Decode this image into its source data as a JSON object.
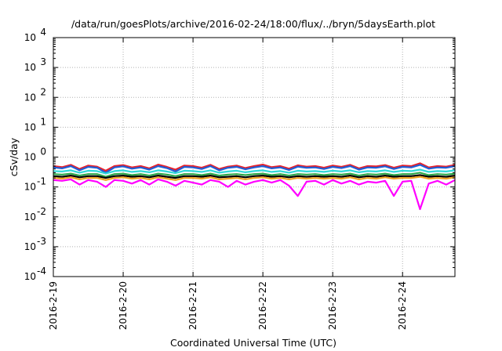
{
  "chart_data": {
    "type": "line",
    "title": "/data/run/goesPlots/archive/2016-02-24/18:00/flux/../bryn/5daysEarth.plot",
    "xlabel": "Coordinated Universal Time (UTC)",
    "ylabel": "cSv/day",
    "yscale": "log",
    "ylim": [
      0.0001,
      10000
    ],
    "xlim": [
      "2016-02-19",
      "2016-02-24 18:00"
    ],
    "grid": true,
    "x_tick_labels": [
      "2016-2-19",
      "2016-2-20",
      "2016-2-21",
      "2016-2-22",
      "2016-2-23",
      "2016-2-24"
    ],
    "y_tick_labels": [
      {
        "base": "10",
        "exp": "-4"
      },
      {
        "base": "10",
        "exp": "-3"
      },
      {
        "base": "10",
        "exp": "-2"
      },
      {
        "base": "10",
        "exp": "-1"
      },
      {
        "base": "10",
        "exp": "0"
      },
      {
        "base": "10",
        "exp": "1"
      },
      {
        "base": "10",
        "exp": "2"
      },
      {
        "base": "10",
        "exp": "3"
      },
      {
        "base": "10",
        "exp": "4"
      }
    ],
    "x_hours": [
      0,
      3,
      6,
      9,
      12,
      15,
      18,
      21,
      24,
      27,
      30,
      33,
      36,
      39,
      42,
      45,
      48,
      51,
      54,
      57,
      60,
      63,
      66,
      69,
      72,
      75,
      78,
      81,
      84,
      87,
      90,
      93,
      96,
      99,
      102,
      105,
      108,
      111,
      114,
      117,
      120,
      123,
      126,
      129,
      132,
      135,
      138
    ],
    "series": [
      {
        "color": "#e8202a",
        "values": [
          0.5,
          0.46,
          0.55,
          0.4,
          0.52,
          0.48,
          0.35,
          0.5,
          0.54,
          0.45,
          0.5,
          0.42,
          0.56,
          0.47,
          0.38,
          0.52,
          0.5,
          0.44,
          0.55,
          0.4,
          0.48,
          0.52,
          0.43,
          0.5,
          0.56,
          0.46,
          0.5,
          0.41,
          0.53,
          0.48,
          0.5,
          0.44,
          0.52,
          0.47,
          0.55,
          0.42,
          0.5,
          0.49,
          0.54,
          0.44,
          0.52,
          0.5,
          0.62,
          0.45,
          0.5,
          0.48,
          0.55
        ]
      },
      {
        "color": "#1f5fd6",
        "values": [
          0.45,
          0.42,
          0.5,
          0.36,
          0.47,
          0.44,
          0.3,
          0.45,
          0.49,
          0.41,
          0.45,
          0.38,
          0.5,
          0.43,
          0.33,
          0.47,
          0.45,
          0.4,
          0.5,
          0.36,
          0.44,
          0.47,
          0.39,
          0.45,
          0.5,
          0.42,
          0.45,
          0.37,
          0.48,
          0.44,
          0.45,
          0.4,
          0.47,
          0.43,
          0.5,
          0.38,
          0.45,
          0.44,
          0.49,
          0.4,
          0.47,
          0.45,
          0.55,
          0.41,
          0.45,
          0.44,
          0.5
        ]
      },
      {
        "color": "#2fd8d8",
        "values": [
          0.34,
          0.33,
          0.36,
          0.3,
          0.35,
          0.34,
          0.28,
          0.34,
          0.36,
          0.32,
          0.34,
          0.31,
          0.36,
          0.33,
          0.29,
          0.35,
          0.34,
          0.32,
          0.36,
          0.3,
          0.33,
          0.35,
          0.31,
          0.34,
          0.36,
          0.32,
          0.34,
          0.3,
          0.35,
          0.33,
          0.34,
          0.32,
          0.35,
          0.33,
          0.36,
          0.31,
          0.34,
          0.33,
          0.36,
          0.32,
          0.35,
          0.34,
          0.38,
          0.32,
          0.34,
          0.33,
          0.36
        ]
      },
      {
        "color": "#2ea84a",
        "values": [
          0.27,
          0.26,
          0.28,
          0.24,
          0.27,
          0.27,
          0.22,
          0.27,
          0.28,
          0.25,
          0.27,
          0.24,
          0.28,
          0.26,
          0.23,
          0.27,
          0.27,
          0.25,
          0.28,
          0.24,
          0.26,
          0.27,
          0.25,
          0.27,
          0.28,
          0.25,
          0.27,
          0.24,
          0.27,
          0.26,
          0.27,
          0.25,
          0.27,
          0.26,
          0.28,
          0.24,
          0.27,
          0.26,
          0.28,
          0.25,
          0.27,
          0.27,
          0.3,
          0.25,
          0.27,
          0.26,
          0.28
        ]
      },
      {
        "color": "#000000",
        "values": [
          0.23,
          0.22,
          0.24,
          0.21,
          0.23,
          0.23,
          0.2,
          0.23,
          0.24,
          0.22,
          0.23,
          0.21,
          0.24,
          0.22,
          0.2,
          0.23,
          0.23,
          0.22,
          0.24,
          0.21,
          0.22,
          0.23,
          0.21,
          0.23,
          0.24,
          0.22,
          0.23,
          0.21,
          0.23,
          0.22,
          0.23,
          0.22,
          0.23,
          0.22,
          0.24,
          0.21,
          0.23,
          0.22,
          0.24,
          0.22,
          0.23,
          0.23,
          0.25,
          0.22,
          0.23,
          0.22,
          0.24
        ]
      },
      {
        "color": "#f0a020",
        "values": [
          0.2,
          0.19,
          0.21,
          0.18,
          0.2,
          0.2,
          0.17,
          0.2,
          0.21,
          0.19,
          0.2,
          0.18,
          0.21,
          0.19,
          0.17,
          0.2,
          0.2,
          0.19,
          0.21,
          0.18,
          0.19,
          0.2,
          0.18,
          0.2,
          0.21,
          0.19,
          0.2,
          0.18,
          0.2,
          0.19,
          0.2,
          0.19,
          0.2,
          0.19,
          0.21,
          0.18,
          0.2,
          0.19,
          0.21,
          0.19,
          0.2,
          0.2,
          0.22,
          0.19,
          0.2,
          0.19,
          0.21
        ]
      },
      {
        "color": "#ff00ff",
        "values": [
          0.17,
          0.16,
          0.18,
          0.12,
          0.17,
          0.15,
          0.1,
          0.17,
          0.16,
          0.13,
          0.17,
          0.12,
          0.18,
          0.15,
          0.11,
          0.16,
          0.14,
          0.12,
          0.17,
          0.15,
          0.1,
          0.16,
          0.12,
          0.15,
          0.17,
          0.14,
          0.17,
          0.11,
          0.05,
          0.15,
          0.16,
          0.12,
          0.17,
          0.13,
          0.16,
          0.12,
          0.15,
          0.14,
          0.16,
          0.05,
          0.15,
          0.16,
          0.018,
          0.13,
          0.16,
          0.12,
          0.17
        ]
      }
    ]
  }
}
